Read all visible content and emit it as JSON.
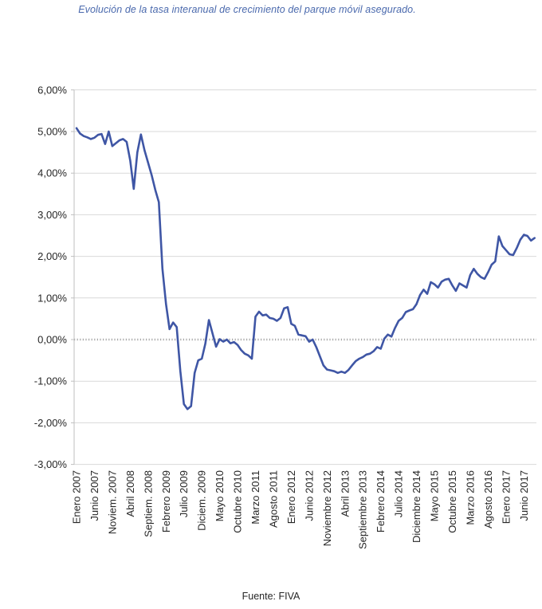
{
  "page": {
    "title": "Evolución de la tasa interanual de crecimiento del parque móvil asegurado.",
    "footer": "Fuente: FIVA"
  },
  "colors": {
    "line": "#3F56A5",
    "title": "#4A69AD",
    "grid": "#D9D9D9",
    "axis": "#BFBFBF",
    "zero_line": "#A6A6A6",
    "text": "#262626"
  },
  "chart_data": {
    "type": "line",
    "title": "Evolución de la tasa interanual de crecimiento del parque móvil asegurado.",
    "source_label": "Fuente: FIVA",
    "legend": "none",
    "grid": "horizontal",
    "y_axis": {
      "min": -3,
      "max": 6,
      "step": 1,
      "unit": "%",
      "tick_labels": [
        "6,00%",
        "5,00%",
        "4,00%",
        "3,00%",
        "2,00%",
        "1,00%",
        "0,00%",
        "-1,00%",
        "-2,00%",
        "-3,00%"
      ],
      "zero_line_style": "dotted"
    },
    "x_axis": {
      "frequency": "monthly",
      "start": "Enero 2007",
      "end": "Septiembre 2017",
      "tick_every_months": 5,
      "tick_labels": [
        "Enero 2007",
        "Junio 2007",
        "Noviem. 2007",
        "Abril 2008",
        "Septiem. 2008",
        "Febrero 2009",
        "Julio 2009",
        "Diciem. 2009",
        "Mayo 2010",
        "Octubre 2010",
        "Marzo 2011",
        "Agosto 2011",
        "Enero 2012",
        "Junio 2012",
        "Noviembre 2012",
        "Abril 2013",
        "Septiembre 2013",
        "Febrero 2014",
        "Julio 2014",
        "Diciembre 2014",
        "Mayo 2015",
        "Octubre 2015",
        "Marzo 2016",
        "Agosto 2016",
        "Enero 2017",
        "Junio 2017"
      ],
      "label_rotation_deg": 90
    },
    "series": [
      {
        "name": "Tasa interanual de crecimiento del parque móvil asegurado (%)",
        "color": "#3F56A5",
        "values_pct": [
          5.08,
          4.95,
          4.89,
          4.86,
          4.82,
          4.85,
          4.92,
          4.94,
          4.7,
          5.0,
          4.65,
          4.72,
          4.79,
          4.82,
          4.75,
          4.3,
          3.62,
          4.5,
          4.93,
          4.55,
          4.25,
          3.95,
          3.6,
          3.3,
          1.7,
          0.85,
          0.25,
          0.41,
          0.3,
          -0.75,
          -1.55,
          -1.67,
          -1.6,
          -0.8,
          -0.5,
          -0.46,
          -0.1,
          0.47,
          0.15,
          -0.17,
          0.01,
          -0.05,
          0.0,
          -0.09,
          -0.06,
          -0.13,
          -0.25,
          -0.34,
          -0.38,
          -0.46,
          0.55,
          0.67,
          0.58,
          0.6,
          0.52,
          0.5,
          0.45,
          0.52,
          0.75,
          0.78,
          0.38,
          0.33,
          0.12,
          0.1,
          0.08,
          -0.05,
          0.0,
          -0.18,
          -0.4,
          -0.62,
          -0.72,
          -0.74,
          -0.76,
          -0.8,
          -0.77,
          -0.8,
          -0.73,
          -0.62,
          -0.52,
          -0.46,
          -0.42,
          -0.36,
          -0.34,
          -0.28,
          -0.18,
          -0.22,
          0.02,
          0.12,
          0.07,
          0.28,
          0.45,
          0.52,
          0.66,
          0.7,
          0.73,
          0.85,
          1.07,
          1.2,
          1.1,
          1.38,
          1.33,
          1.25,
          1.39,
          1.44,
          1.46,
          1.3,
          1.17,
          1.35,
          1.3,
          1.25,
          1.55,
          1.7,
          1.58,
          1.5,
          1.46,
          1.62,
          1.8,
          1.88,
          2.48,
          2.25,
          2.15,
          2.05,
          2.03,
          2.2,
          2.4,
          2.52,
          2.49,
          2.38,
          2.44
        ]
      }
    ]
  }
}
